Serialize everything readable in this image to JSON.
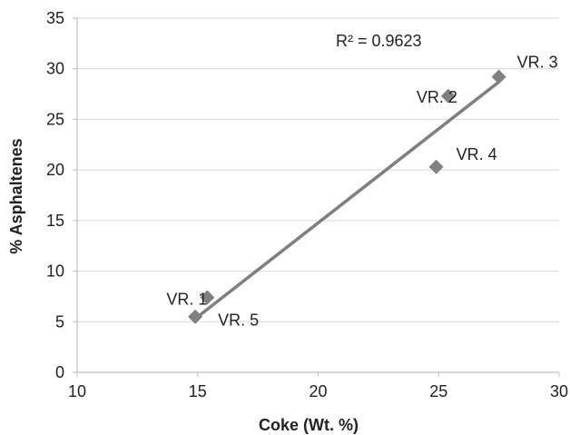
{
  "chart_data": {
    "type": "scatter",
    "xlabel": "Coke (Wt. %)",
    "ylabel": "% Asphaltenes",
    "xlim": [
      10,
      30
    ],
    "ylim": [
      0,
      35
    ],
    "xticks": [
      10,
      15,
      20,
      25,
      30
    ],
    "yticks": [
      0,
      5,
      10,
      15,
      20,
      25,
      30,
      35
    ],
    "grid": "horizontal",
    "legend": "none",
    "marker": "diamond",
    "colors": {
      "marker": "#808080",
      "trendline": "#7f7f7f",
      "axis": "#bfbfbf",
      "grid": "#d9d9d9",
      "text": "#222222"
    },
    "points": [
      {
        "label": "VR. 1",
        "x": 15.4,
        "y": 7.4
      },
      {
        "label": "VR. 2",
        "x": 25.4,
        "y": 27.3
      },
      {
        "label": "VR. 3",
        "x": 27.5,
        "y": 29.2
      },
      {
        "label": "VR. 4",
        "x": 24.9,
        "y": 20.3
      },
      {
        "label": "VR. 5",
        "x": 14.9,
        "y": 5.5
      }
    ],
    "trendline": {
      "type": "linear",
      "x": [
        14.9,
        27.5
      ],
      "y": [
        5.3,
        28.7
      ],
      "r2_label": "R² = 0.9623"
    }
  }
}
